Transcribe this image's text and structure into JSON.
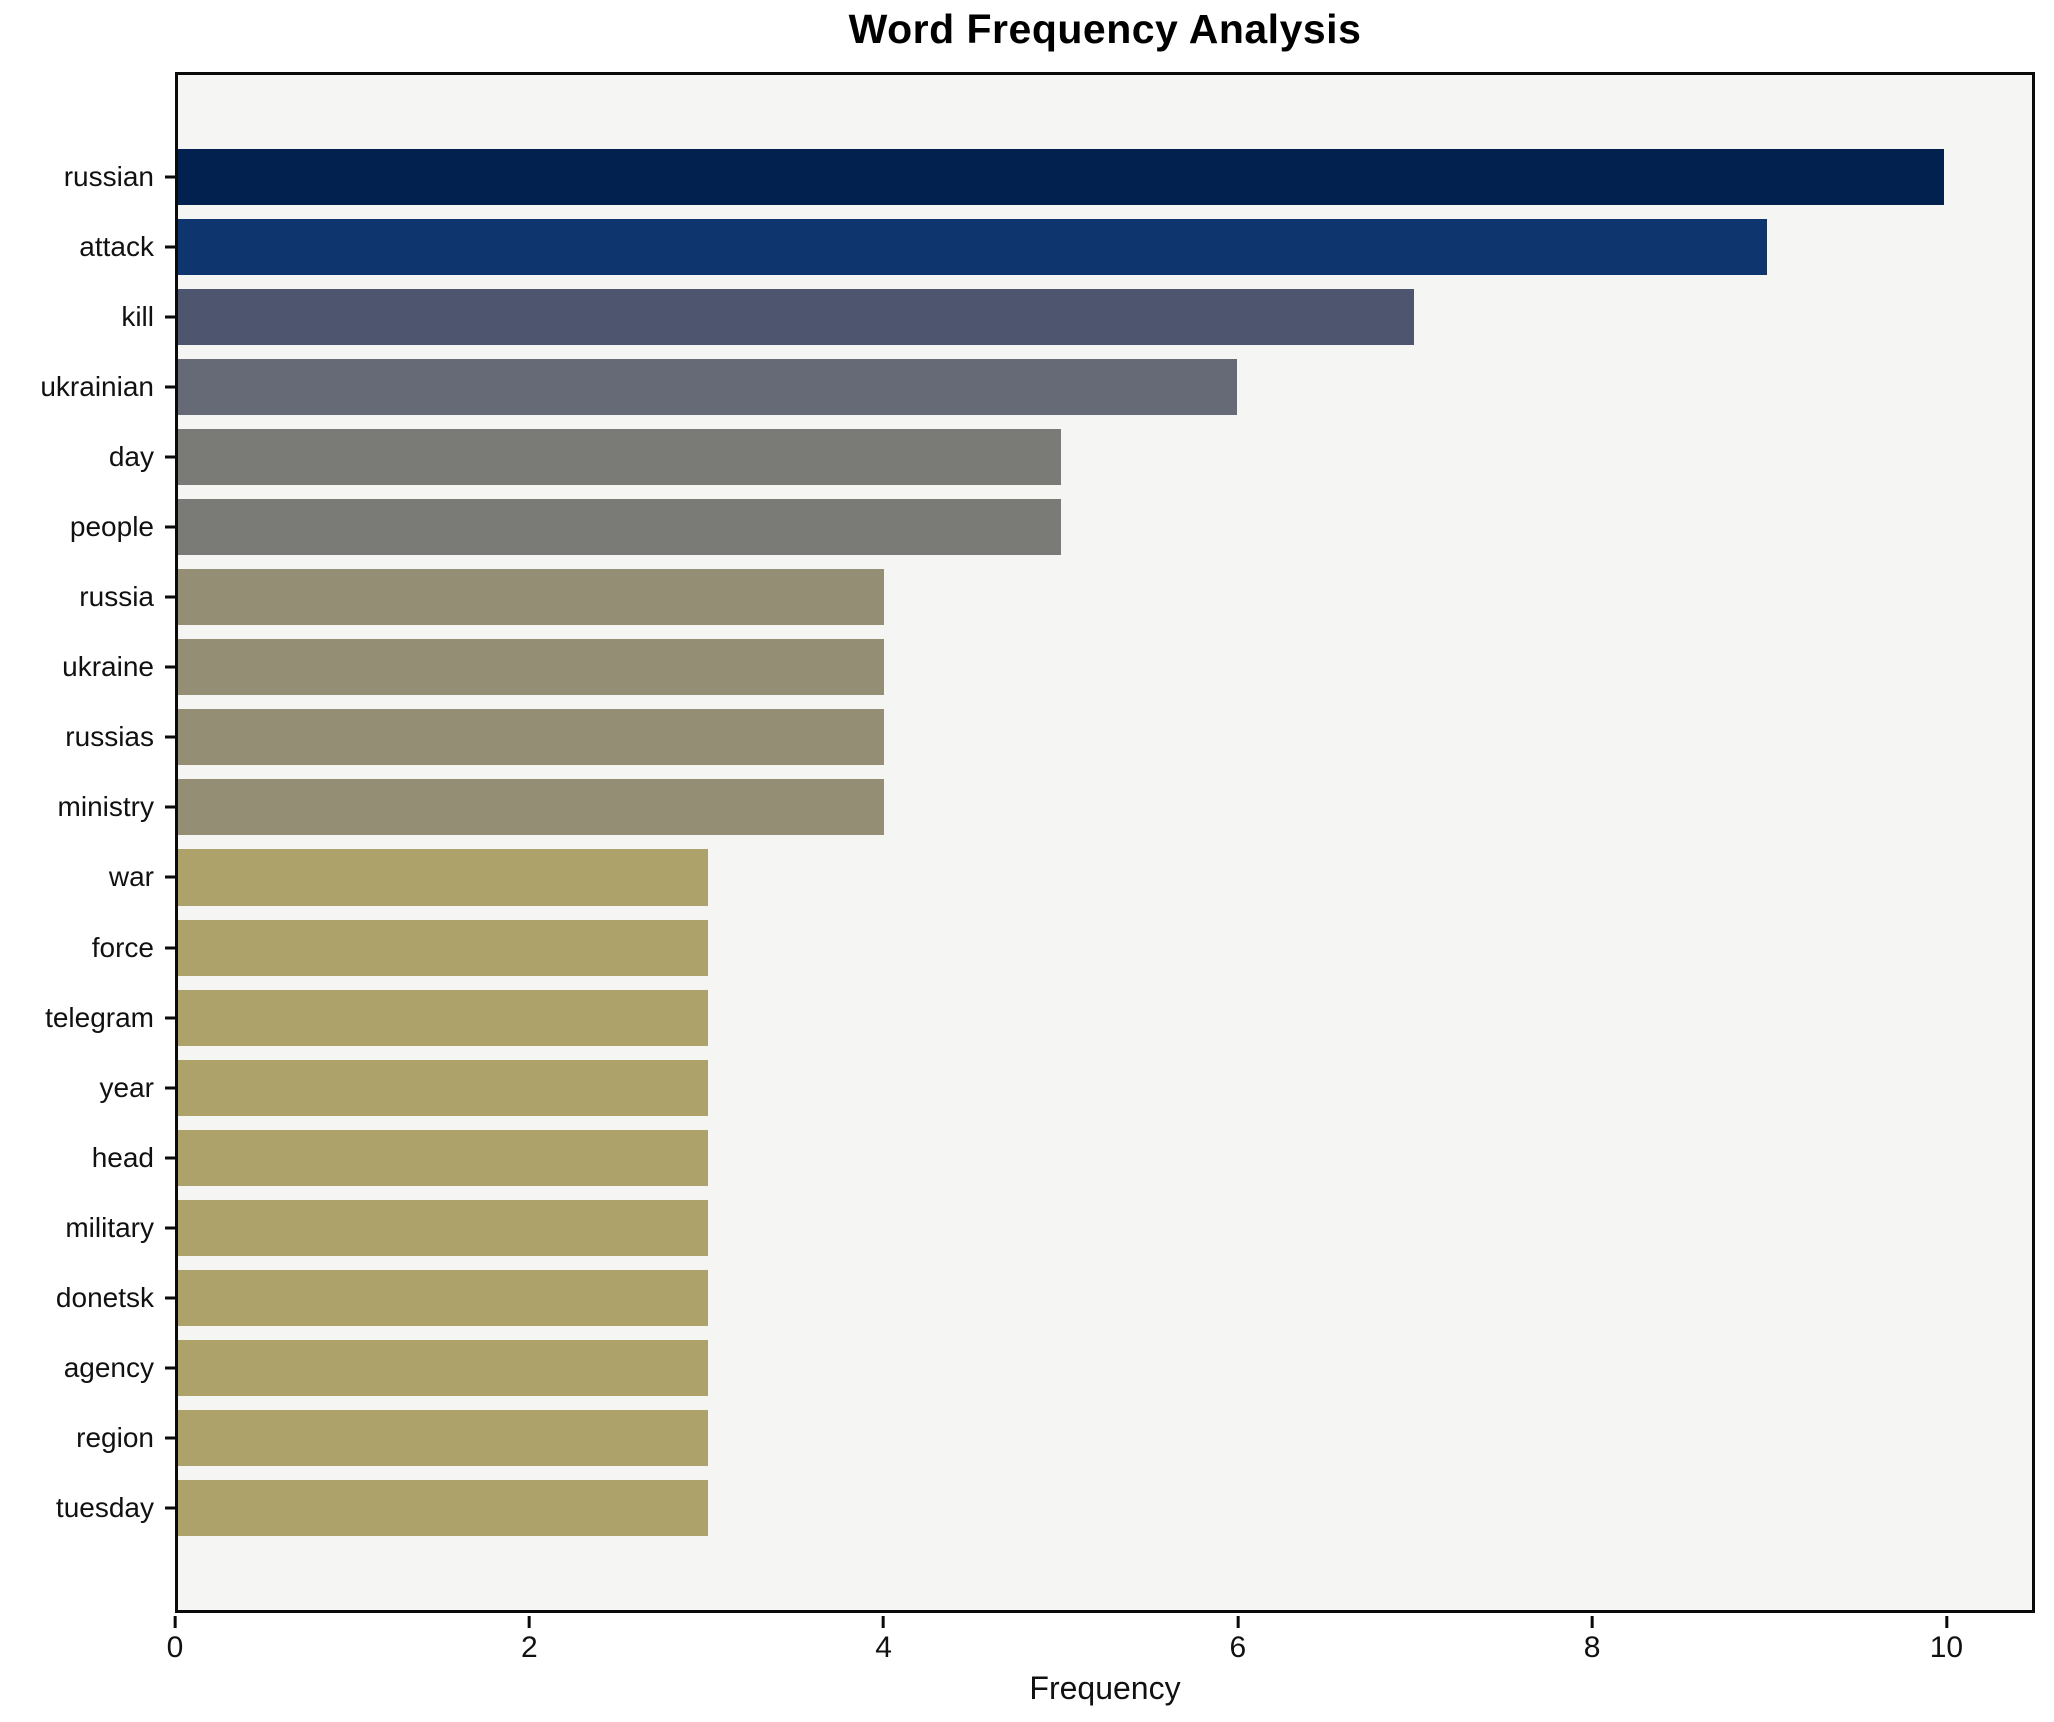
{
  "chart_data": {
    "type": "bar",
    "orientation": "horizontal",
    "title": "Word Frequency Analysis",
    "xlabel": "Frequency",
    "ylabel": "",
    "categories": [
      "russian",
      "attack",
      "kill",
      "ukrainian",
      "day",
      "people",
      "russia",
      "ukraine",
      "russias",
      "ministry",
      "war",
      "force",
      "telegram",
      "year",
      "head",
      "military",
      "donetsk",
      "agency",
      "region",
      "tuesday"
    ],
    "values": [
      10,
      9,
      7,
      6,
      5,
      5,
      4,
      4,
      4,
      4,
      3,
      3,
      3,
      3,
      3,
      3,
      3,
      3,
      3,
      3
    ],
    "bar_colors": [
      "#02214e",
      "#0f356f",
      "#4d566e",
      "#666976",
      "#7a7a77",
      "#7a7a77",
      "#948e74",
      "#948e74",
      "#948e74",
      "#948e74",
      "#ada269",
      "#ada269",
      "#ada269",
      "#ada269",
      "#ada269",
      "#ada269",
      "#ada269",
      "#ada269",
      "#ada269",
      "#ada269"
    ],
    "xlim": [
      0,
      10.5
    ],
    "xticks": [
      0,
      2,
      4,
      6,
      8,
      10
    ],
    "grid": false,
    "legend_position": "none",
    "plot_background": "#f5f5f3",
    "figure_background": "#ffffff",
    "spine_color": "#0a0a0a",
    "text_color": "#111111"
  }
}
